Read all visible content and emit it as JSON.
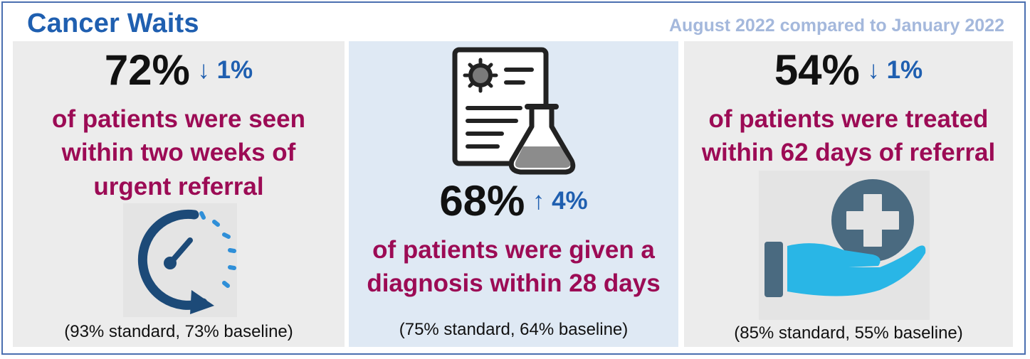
{
  "header": {
    "title": "Cancer Waits",
    "subtitle": "August 2022 compared to January 2022"
  },
  "panels": [
    {
      "percent": "72%",
      "change": "↓ 1%",
      "description_lines": [
        "of patients were seen",
        "within two weeks of",
        "urgent referral"
      ],
      "standard": "(93% standard, 73% baseline)",
      "icon": "stopwatch-icon"
    },
    {
      "percent": "68%",
      "change": "↑ 4%",
      "description_lines": [
        "of patients were given a",
        "diagnosis within 28 days"
      ],
      "standard": "(75% standard, 64% baseline)",
      "icon": "lab-report-icon"
    },
    {
      "percent": "54%",
      "change": "↓ 1%",
      "description_lines": [
        "of patients were treated",
        "within 62 days of referral"
      ],
      "standard": "(85% standard, 55% baseline)",
      "icon": "hand-medical-cross-icon"
    }
  ],
  "colors": {
    "title": "#1f5fb0",
    "subtitle": "#a4b8dc",
    "description": "#9c0b55",
    "change": "#1f5fb0",
    "panel_grey": "#ececec",
    "panel_blue": "#dfe9f4"
  }
}
